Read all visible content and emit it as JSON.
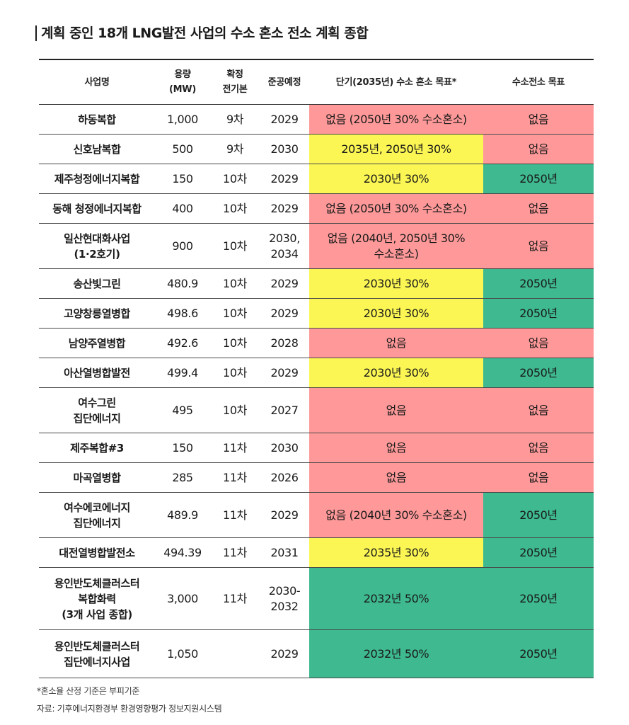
{
  "title": "계획 중인 18개 LNG발전 사업의 수소 혼소 전소 계획 종합",
  "headers": [
    {
      "key": "name",
      "l1": "사업명",
      "l2": ""
    },
    {
      "key": "cap",
      "l1": "용량",
      "l2": "(MW)"
    },
    {
      "key": "plan",
      "l1": "확정",
      "l2": "전기본"
    },
    {
      "key": "year",
      "l1": "준공예정",
      "l2": ""
    },
    {
      "key": "short",
      "l1": "단기(2035년) 수소 혼소 목표*",
      "l2": ""
    },
    {
      "key": "full",
      "l1": "수소전소 목표",
      "l2": ""
    }
  ],
  "colors": {
    "red": "#ff9999",
    "yellow": "#fbf653",
    "green": "#3eb990"
  },
  "rows": [
    {
      "name": "하동복합",
      "cap": "1,000",
      "plan": "9차",
      "year": "2029",
      "short": "없음 (2050년 30% 수소혼소)",
      "short_color": "red",
      "full": "없음",
      "full_color": "red"
    },
    {
      "name": "신호남복합",
      "cap": "500",
      "plan": "9차",
      "year": "2030",
      "short": "2035년, 2050년 30%",
      "short_color": "yellow",
      "full": "없음",
      "full_color": "red"
    },
    {
      "name": "제주청정에너지복합",
      "cap": "150",
      "plan": "10차",
      "year": "2029",
      "short": "2030년 30%",
      "short_color": "yellow",
      "full": "2050년",
      "full_color": "green"
    },
    {
      "name": "동해 청정에너지복합",
      "cap": "400",
      "plan": "10차",
      "year": "2029",
      "short": "없음 (2050년 30% 수소혼소)",
      "short_color": "red",
      "full": "없음",
      "full_color": "red"
    },
    {
      "name": "일산현대화사업\n(1·2호기)",
      "cap": "900",
      "plan": "10차",
      "year": "2030,\n2034",
      "short": "없음 (2040년, 2050년 30%\n수소혼소)",
      "short_color": "red",
      "full": "없음",
      "full_color": "red"
    },
    {
      "name": "송산빛그린",
      "cap": "480.9",
      "plan": "10차",
      "year": "2029",
      "short": "2030년 30%",
      "short_color": "yellow",
      "full": "2050년",
      "full_color": "green"
    },
    {
      "name": "고양창릉열병합",
      "cap": "498.6",
      "plan": "10차",
      "year": "2029",
      "short": "2030년 30%",
      "short_color": "yellow",
      "full": "2050년",
      "full_color": "green"
    },
    {
      "name": "남양주열병합",
      "cap": "492.6",
      "plan": "10차",
      "year": "2028",
      "short": "없음",
      "short_color": "red",
      "full": "없음",
      "full_color": "red"
    },
    {
      "name": "아산열병합발전",
      "cap": "499.4",
      "plan": "10차",
      "year": "2029",
      "short": "2030년 30%",
      "short_color": "yellow",
      "full": "2050년",
      "full_color": "green"
    },
    {
      "name": "여수그린\n집단에너지",
      "cap": "495",
      "plan": "10차",
      "year": "2027",
      "short": "없음",
      "short_color": "red",
      "full": "없음",
      "full_color": "red"
    },
    {
      "name": "제주복합#3",
      "cap": "150",
      "plan": "11차",
      "year": "2030",
      "short": "없음",
      "short_color": "red",
      "full": "없음",
      "full_color": "red"
    },
    {
      "name": "마곡열병합",
      "cap": "285",
      "plan": "11차",
      "year": "2026",
      "short": "없음",
      "short_color": "red",
      "full": "없음",
      "full_color": "red"
    },
    {
      "name": "여수에코에너지\n집단에너지",
      "cap": "489.9",
      "plan": "11차",
      "year": "2029",
      "short": "없음 (2040년 30% 수소혼소)",
      "short_color": "red",
      "full": "2050년",
      "full_color": "green"
    },
    {
      "name": "대전열병합발전소",
      "cap": "494.39",
      "plan": "11차",
      "year": "2031",
      "short": "2035년 30%",
      "short_color": "yellow",
      "full": "2050년",
      "full_color": "green"
    },
    {
      "name": "용인반도체클러스터\n복합화력\n(3개 사업 종합)",
      "cap": "3,000",
      "plan": "11차",
      "year": "2030-\n2032",
      "short": "2032년 50%",
      "short_color": "green",
      "full": "2050년",
      "full_color": "green"
    },
    {
      "name": "용인반도체클러스터\n집단에너지사업",
      "cap": "1,050",
      "plan": "",
      "year": "2029",
      "short": "2032년 50%",
      "short_color": "green",
      "full": "2050년",
      "full_color": "green"
    }
  ],
  "footnote": "*혼소율 산정 기준은 부피기준",
  "source": "자료: 기후에너지환경부 환경영향평가 정보지원시스템"
}
